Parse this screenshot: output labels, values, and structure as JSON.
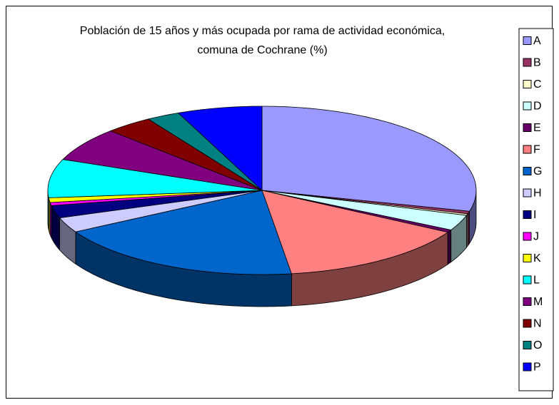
{
  "chart_data": {
    "type": "pie3d",
    "title": "Población de 15 años y más ocupada por rama de actividad económica, comuna de Cochrane (%)",
    "categories": [
      "A",
      "B",
      "C",
      "D",
      "E",
      "F",
      "G",
      "H",
      "I",
      "J",
      "K",
      "L",
      "M",
      "N",
      "O",
      "P"
    ],
    "values": [
      29,
      0.5,
      0.3,
      3,
      0.5,
      14.5,
      19,
      2.9,
      2.4,
      0.6,
      0.9,
      7.4,
      6.5,
      3.6,
      2.5,
      6.4
    ],
    "colors": [
      "#9999FF",
      "#993366",
      "#FFFFCC",
      "#CCFFFF",
      "#660066",
      "#FF8080",
      "#0066CC",
      "#CCCCFF",
      "#000080",
      "#FF00FF",
      "#FFFF00",
      "#00FFFF",
      "#800080",
      "#800000",
      "#008080",
      "#0000FF"
    ],
    "legend": "right"
  }
}
